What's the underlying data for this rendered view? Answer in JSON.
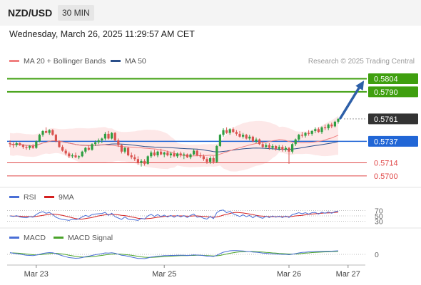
{
  "header": {
    "symbol": "NZD/USD",
    "timeframe": "30 MIN",
    "datetime": "Wednesday, March 26, 2025 11:29:57 AM CET",
    "credit": "Research © 2025 Trading Central"
  },
  "legends": {
    "ma20": "MA 20 + Bollinger Bands",
    "ma50": "MA 50",
    "rsi": "RSI",
    "rsi_ma": "9MA",
    "macd": "MACD",
    "macd_signal": "MACD Signal"
  },
  "colors": {
    "up": "#2e9e41",
    "down": "#d9534f",
    "ma20": "#f08080",
    "ma50": "#2b4f8a",
    "band_fill": "#fde4e4",
    "resistance": "#3f9f0f",
    "support": "#2166d6",
    "support2": "#e04848",
    "current": "#333333",
    "arrow": "#2d5fa8",
    "rsi_line": "#4a6fd6",
    "rsi_ma": "#d42020",
    "macd_line": "#4a6fd6",
    "macd_signal": "#4aa32a"
  },
  "chart_data": [
    {
      "type": "candlestick",
      "name": "price",
      "ylim": [
        0.569,
        0.5812
      ],
      "x_ticks": [
        {
          "index": 8,
          "label": "Mar 23"
        },
        {
          "index": 47,
          "label": "Mar 25"
        },
        {
          "index": 85,
          "label": "Mar 26"
        },
        {
          "index": 103,
          "label": "Mar 27"
        }
      ],
      "levels": [
        {
          "value": 0.5804,
          "label": "0.5804",
          "kind": "resistance"
        },
        {
          "value": 0.579,
          "label": "0.5790",
          "kind": "resistance"
        },
        {
          "value": 0.5761,
          "label": "0.5761",
          "kind": "current"
        },
        {
          "value": 0.5737,
          "label": "0.5737",
          "kind": "pivot"
        },
        {
          "value": 0.5714,
          "label": "0.5714",
          "kind": "support"
        },
        {
          "value": 0.57,
          "label": "0.5700",
          "kind": "support"
        }
      ],
      "forecast_target": 0.5804,
      "candles": [
        [
          0.5735,
          0.5738,
          0.5731,
          0.5734
        ],
        [
          0.5734,
          0.5736,
          0.573,
          0.5733
        ],
        [
          0.5733,
          0.5737,
          0.5731,
          0.5735
        ],
        [
          0.5735,
          0.5736,
          0.5732,
          0.5733
        ],
        [
          0.5733,
          0.5734,
          0.5729,
          0.5731
        ],
        [
          0.5731,
          0.5733,
          0.5728,
          0.573
        ],
        [
          0.573,
          0.5733,
          0.5728,
          0.5732
        ],
        [
          0.5732,
          0.5734,
          0.5729,
          0.573
        ],
        [
          0.573,
          0.5738,
          0.5729,
          0.5737
        ],
        [
          0.5737,
          0.5745,
          0.5736,
          0.5744
        ],
        [
          0.5744,
          0.5749,
          0.5742,
          0.5748
        ],
        [
          0.5748,
          0.5752,
          0.5746,
          0.5746
        ],
        [
          0.5746,
          0.575,
          0.5744,
          0.5749
        ],
        [
          0.5749,
          0.575,
          0.5743,
          0.5744
        ],
        [
          0.5744,
          0.5745,
          0.5736,
          0.5737
        ],
        [
          0.5737,
          0.5738,
          0.573,
          0.5731
        ],
        [
          0.5731,
          0.5733,
          0.5726,
          0.5727
        ],
        [
          0.5727,
          0.5729,
          0.5722,
          0.5724
        ],
        [
          0.5724,
          0.5726,
          0.5719,
          0.5721
        ],
        [
          0.5721,
          0.5724,
          0.5719,
          0.5722
        ],
        [
          0.5722,
          0.5725,
          0.5719,
          0.572
        ],
        [
          0.572,
          0.5722,
          0.5718,
          0.5721
        ],
        [
          0.5721,
          0.5727,
          0.572,
          0.5726
        ],
        [
          0.5726,
          0.5731,
          0.5724,
          0.573
        ],
        [
          0.573,
          0.5733,
          0.5727,
          0.5728
        ],
        [
          0.5728,
          0.5735,
          0.5727,
          0.5734
        ],
        [
          0.5734,
          0.5738,
          0.5732,
          0.5736
        ],
        [
          0.5736,
          0.574,
          0.5734,
          0.5738
        ],
        [
          0.5738,
          0.5741,
          0.5735,
          0.574
        ],
        [
          0.574,
          0.5747,
          0.5738,
          0.5745
        ],
        [
          0.5745,
          0.5748,
          0.5739,
          0.574
        ],
        [
          0.574,
          0.5747,
          0.5739,
          0.5746
        ],
        [
          0.5746,
          0.5747,
          0.5737,
          0.5738
        ],
        [
          0.5738,
          0.574,
          0.5731,
          0.5733
        ],
        [
          0.5733,
          0.5734,
          0.5724,
          0.5726
        ],
        [
          0.5726,
          0.5731,
          0.5724,
          0.573
        ],
        [
          0.573,
          0.5731,
          0.5721,
          0.5722
        ],
        [
          0.5722,
          0.5725,
          0.5718,
          0.572
        ],
        [
          0.572,
          0.5723,
          0.5716,
          0.5718
        ],
        [
          0.5718,
          0.5721,
          0.5712,
          0.5714
        ],
        [
          0.5714,
          0.5718,
          0.571,
          0.5716
        ],
        [
          0.5716,
          0.5718,
          0.5711,
          0.5713
        ],
        [
          0.5713,
          0.5722,
          0.5712,
          0.5721
        ],
        [
          0.5721,
          0.5727,
          0.5719,
          0.5725
        ],
        [
          0.5725,
          0.5728,
          0.5721,
          0.5722
        ],
        [
          0.5722,
          0.5727,
          0.572,
          0.5726
        ],
        [
          0.5726,
          0.5729,
          0.5722,
          0.5723
        ],
        [
          0.5723,
          0.5726,
          0.572,
          0.5725
        ],
        [
          0.5725,
          0.5727,
          0.5721,
          0.5722
        ],
        [
          0.5722,
          0.5726,
          0.5719,
          0.5724
        ],
        [
          0.5724,
          0.5727,
          0.572,
          0.5721
        ],
        [
          0.5721,
          0.5725,
          0.5719,
          0.5724
        ],
        [
          0.5724,
          0.5726,
          0.572,
          0.5722
        ],
        [
          0.5722,
          0.5725,
          0.5718,
          0.5723
        ],
        [
          0.5723,
          0.5724,
          0.5719,
          0.572
        ],
        [
          0.572,
          0.5724,
          0.5718,
          0.5723
        ],
        [
          0.5723,
          0.5729,
          0.5722,
          0.5727
        ],
        [
          0.5727,
          0.5728,
          0.5721,
          0.5722
        ],
        [
          0.5722,
          0.5725,
          0.5719,
          0.5721
        ],
        [
          0.5721,
          0.5723,
          0.5716,
          0.5718
        ],
        [
          0.5718,
          0.572,
          0.5713,
          0.5715
        ],
        [
          0.5715,
          0.5721,
          0.5713,
          0.5719
        ],
        [
          0.5719,
          0.5721,
          0.5713,
          0.5715
        ],
        [
          0.5715,
          0.5733,
          0.5714,
          0.5732
        ],
        [
          0.5732,
          0.5745,
          0.5731,
          0.5744
        ],
        [
          0.5744,
          0.5751,
          0.5742,
          0.5749
        ],
        [
          0.5749,
          0.5752,
          0.5745,
          0.5746
        ],
        [
          0.5746,
          0.5751,
          0.5744,
          0.575
        ],
        [
          0.575,
          0.5752,
          0.5746,
          0.5747
        ],
        [
          0.5747,
          0.5749,
          0.5743,
          0.5745
        ],
        [
          0.5745,
          0.5748,
          0.5741,
          0.5742
        ],
        [
          0.5742,
          0.5746,
          0.574,
          0.5744
        ],
        [
          0.5744,
          0.5745,
          0.5739,
          0.574
        ],
        [
          0.574,
          0.5744,
          0.5738,
          0.5742
        ],
        [
          0.5742,
          0.5743,
          0.5736,
          0.5737
        ],
        [
          0.5737,
          0.5741,
          0.5735,
          0.5739
        ],
        [
          0.5739,
          0.574,
          0.5733,
          0.5734
        ],
        [
          0.5734,
          0.5737,
          0.573,
          0.5731
        ],
        [
          0.5731,
          0.5735,
          0.5729,
          0.5733
        ],
        [
          0.5733,
          0.5735,
          0.5728,
          0.573
        ],
        [
          0.573,
          0.5734,
          0.5728,
          0.5732
        ],
        [
          0.5732,
          0.5733,
          0.5727,
          0.5729
        ],
        [
          0.5729,
          0.5733,
          0.5727,
          0.5731
        ],
        [
          0.5731,
          0.5733,
          0.5726,
          0.5728
        ],
        [
          0.5728,
          0.5732,
          0.5726,
          0.573
        ],
        [
          0.573,
          0.5731,
          0.5713,
          0.5726
        ],
        [
          0.5726,
          0.5735,
          0.5724,
          0.5734
        ],
        [
          0.5734,
          0.574,
          0.5732,
          0.5739
        ],
        [
          0.5739,
          0.5745,
          0.5737,
          0.5744
        ],
        [
          0.5744,
          0.5747,
          0.5741,
          0.5743
        ],
        [
          0.5743,
          0.5747,
          0.5741,
          0.5746
        ],
        [
          0.5746,
          0.5749,
          0.5743,
          0.5745
        ],
        [
          0.5745,
          0.5749,
          0.5743,
          0.5748
        ],
        [
          0.5748,
          0.5752,
          0.5746,
          0.575
        ],
        [
          0.575,
          0.5752,
          0.5746,
          0.5747
        ],
        [
          0.5747,
          0.5753,
          0.5745,
          0.5752
        ],
        [
          0.5752,
          0.5755,
          0.5749,
          0.5751
        ],
        [
          0.5751,
          0.5756,
          0.5749,
          0.5755
        ],
        [
          0.5755,
          0.5757,
          0.5751,
          0.5753
        ],
        [
          0.5753,
          0.5759,
          0.5752,
          0.5758
        ],
        [
          0.5758,
          0.5762,
          0.5756,
          0.5761
        ]
      ]
    },
    {
      "type": "line",
      "name": "rsi",
      "ylim": [
        10,
        90
      ],
      "levels": [
        {
          "value": 70,
          "label": "70"
        },
        {
          "value": 50,
          "label": "50"
        },
        {
          "value": 30,
          "label": "30"
        }
      ],
      "series": [
        {
          "name": "RSI",
          "values": [
            50,
            48,
            51,
            46,
            44,
            43,
            47,
            45,
            55,
            62,
            66,
            60,
            63,
            55,
            45,
            40,
            37,
            35,
            33,
            38,
            36,
            39,
            46,
            52,
            48,
            55,
            57,
            58,
            59,
            63,
            52,
            60,
            47,
            42,
            37,
            46,
            38,
            36,
            35,
            33,
            41,
            38,
            50,
            56,
            48,
            55,
            47,
            53,
            46,
            52,
            45,
            52,
            46,
            51,
            44,
            52,
            57,
            45,
            47,
            41,
            38,
            48,
            40,
            62,
            70,
            72,
            62,
            67,
            58,
            53,
            48,
            54,
            47,
            52,
            43,
            51,
            45,
            41,
            49,
            44,
            50,
            45,
            49,
            44,
            50,
            44,
            55,
            58,
            62,
            58,
            62,
            57,
            62,
            63,
            57,
            64,
            60,
            65,
            60,
            66,
            68
          ]
        },
        {
          "name": "9MA",
          "values": [
            50,
            49,
            49,
            49,
            48,
            48,
            47,
            47,
            48,
            50,
            52,
            54,
            56,
            57,
            56,
            54,
            52,
            49,
            46,
            43,
            40,
            38,
            38,
            40,
            42,
            44,
            47,
            50,
            52,
            54,
            55,
            56,
            55,
            54,
            52,
            51,
            49,
            46,
            44,
            41,
            40,
            39,
            40,
            41,
            43,
            45,
            46,
            48,
            49,
            50,
            50,
            50,
            50,
            50,
            49,
            49,
            50,
            50,
            49,
            48,
            47,
            46,
            45,
            46,
            49,
            53,
            56,
            59,
            62,
            63,
            62,
            61,
            59,
            57,
            55,
            52,
            50,
            49,
            48,
            47,
            47,
            47,
            47,
            47,
            47,
            47,
            48,
            50,
            51,
            52,
            54,
            56,
            57,
            58,
            59,
            60,
            61,
            61,
            62,
            63,
            64
          ]
        }
      ]
    },
    {
      "type": "line",
      "name": "macd",
      "ylim": [
        -0.0006,
        0.0006
      ],
      "levels": [
        {
          "value": 0,
          "label": "0"
        }
      ],
      "series": [
        {
          "name": "MACD",
          "values": [
            0.0001,
            6e-05,
            4e-05,
            1e-05,
            -2e-05,
            -5e-05,
            -6e-05,
            -7e-05,
            -4e-05,
            0.0,
            5e-05,
            8e-05,
            0.0001,
            9e-05,
            4e-05,
            -2e-05,
            -8e-05,
            -0.00013,
            -0.00018,
            -0.0002,
            -0.00022,
            -0.00021,
            -0.00018,
            -0.00013,
            -0.0001,
            -6e-05,
            -2e-05,
            1e-05,
            4e-05,
            8e-05,
            7e-05,
            9e-05,
            6e-05,
            1e-05,
            -5e-05,
            -7e-05,
            -0.00011,
            -0.00015,
            -0.00019,
            -0.00023,
            -0.00023,
            -0.00024,
            -0.0002,
            -0.00015,
            -0.00013,
            -0.0001,
            -9e-05,
            -7e-05,
            -7e-05,
            -6e-05,
            -6e-05,
            -5e-05,
            -5e-05,
            -5e-05,
            -6e-05,
            -5e-05,
            -3e-05,
            -4e-05,
            -5e-05,
            -7e-05,
            -0.0001,
            -0.0001,
            -0.00012,
            -5e-05,
            4e-05,
            0.00012,
            0.00016,
            0.0002,
            0.00021,
            0.00021,
            0.0002,
            0.00019,
            0.00017,
            0.00016,
            0.00013,
            0.00012,
            0.0001,
            7e-05,
            6e-05,
            4e-05,
            3e-05,
            2e-05,
            1e-05,
            0.0,
            0.0,
            -2e-05,
            1e-05,
            4e-05,
            8e-05,
            0.00011,
            0.00012,
            0.00014,
            0.00015,
            0.00016,
            0.00016,
            0.00017,
            0.00017,
            0.00018,
            0.00018,
            0.00019,
            0.0002
          ]
        },
        {
          "name": "MACD Signal",
          "values": [
            8e-05,
            8e-05,
            7e-05,
            6e-05,
            4e-05,
            2e-05,
            0.0,
            -2e-05,
            -3e-05,
            -2e-05,
            0.0,
            2e-05,
            4e-05,
            6e-05,
            6e-05,
            4e-05,
            2e-05,
            -1e-05,
            -5e-05,
            -8e-05,
            -0.00011,
            -0.00014,
            -0.00015,
            -0.00015,
            -0.00014,
            -0.00013,
            -0.00011,
            -8e-05,
            -6e-05,
            -3e-05,
            -1e-05,
            1e-05,
            2e-05,
            2e-05,
            1e-05,
            -1e-05,
            -3e-05,
            -5e-05,
            -8e-05,
            -0.00011,
            -0.00014,
            -0.00016,
            -0.00017,
            -0.00017,
            -0.00016,
            -0.00015,
            -0.00014,
            -0.00012,
            -0.00011,
            -0.0001,
            -9e-05,
            -8e-05,
            -7e-05,
            -7e-05,
            -7e-05,
            -6e-05,
            -6e-05,
            -5e-05,
            -5e-05,
            -6e-05,
            -7e-05,
            -8e-05,
            -9e-05,
            -8e-05,
            -6e-05,
            -2e-05,
            2e-05,
            6e-05,
            9e-05,
            0.00012,
            0.00014,
            0.00015,
            0.00016,
            0.00016,
            0.00016,
            0.00015,
            0.00014,
            0.00013,
            0.00011,
            0.0001,
            8e-05,
            7e-05,
            5e-05,
            4e-05,
            3e-05,
            2e-05,
            2e-05,
            2e-05,
            3e-05,
            5e-05,
            7e-05,
            8e-05,
            0.0001,
            0.00011,
            0.00012,
            0.00013,
            0.00014,
            0.00015,
            0.00016,
            0.00016,
            0.00017
          ]
        }
      ]
    }
  ]
}
